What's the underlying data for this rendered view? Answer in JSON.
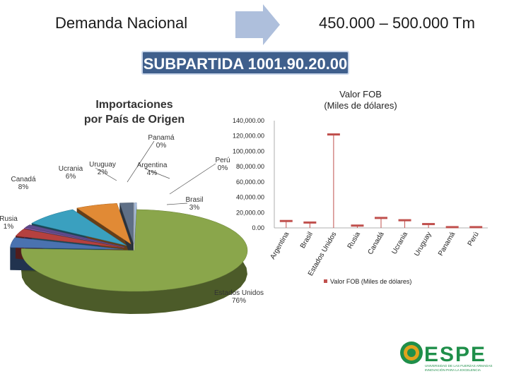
{
  "header": {
    "left_text": "Demanda Nacional",
    "right_text": "450.000 – 500.000 Tm",
    "banner": "SUBPARTIDA 1001.90.20.00"
  },
  "colors": {
    "arrow": "#aebfdc",
    "banner_bg": "#3f5f8c",
    "line_series": "#c0504d",
    "logo_green": "#1f8f4a",
    "logo_gold": "#e0a31c"
  },
  "chart_data": [
    {
      "type": "pie",
      "title": "Importaciones\npor País de Origen",
      "slices": [
        {
          "label": "Estados Unidos",
          "pct_label": "76%",
          "value": 76,
          "color": "#8aa64b"
        },
        {
          "label": "Argentina",
          "pct_label": "4%",
          "value": 4,
          "color": "#4a72b0"
        },
        {
          "label": "Brasil",
          "pct_label": "3%",
          "value": 3,
          "color": "#b5413f"
        },
        {
          "label": "Perú",
          "pct_label": "0%",
          "value": 0.3,
          "color": "#9e5fb5"
        },
        {
          "label": "Rusia",
          "pct_label": "1%",
          "value": 1.2,
          "color": "#5e4b8c"
        },
        {
          "label": "Canadá",
          "pct_label": "8%",
          "value": 8,
          "color": "#3aa0bf"
        },
        {
          "label": "Ucrania",
          "pct_label": "6%",
          "value": 6,
          "color": "#e18a35"
        },
        {
          "label": "Uruguay",
          "pct_label": "2%",
          "value": 2,
          "color": "#5f6f86"
        },
        {
          "label": "Panamá",
          "pct_label": "0%",
          "value": 0.3,
          "color": "#a8bede"
        }
      ]
    },
    {
      "type": "line",
      "title": "Valor FOB\n(Miles de dólares)",
      "categories": [
        "Argentina",
        "Brasil",
        "Estados Unidos",
        "Rusia",
        "Canadá",
        "Ucrania",
        "Uruguay",
        "Panamá",
        "Perú"
      ],
      "series": [
        {
          "name": "Valor FOB (Miles de dólares)",
          "values": [
            9000,
            7000,
            122000,
            3000,
            13000,
            10000,
            5000,
            1000,
            1000
          ]
        }
      ],
      "ylim": [
        0,
        140000
      ],
      "yticks": [
        "0.00",
        "20,000.00",
        "40,000.00",
        "60,000.00",
        "80,000.00",
        "100,000.00",
        "120,000.00",
        "140,000.00"
      ],
      "legend": "bottom",
      "grid": false
    }
  ],
  "logo": {
    "name": "ESPE",
    "line1": "UNIVERSIDAD DE LAS FUERZAS ARMADAS",
    "line2": "INNOVACIÓN PARA LA EXCELENCIA"
  }
}
